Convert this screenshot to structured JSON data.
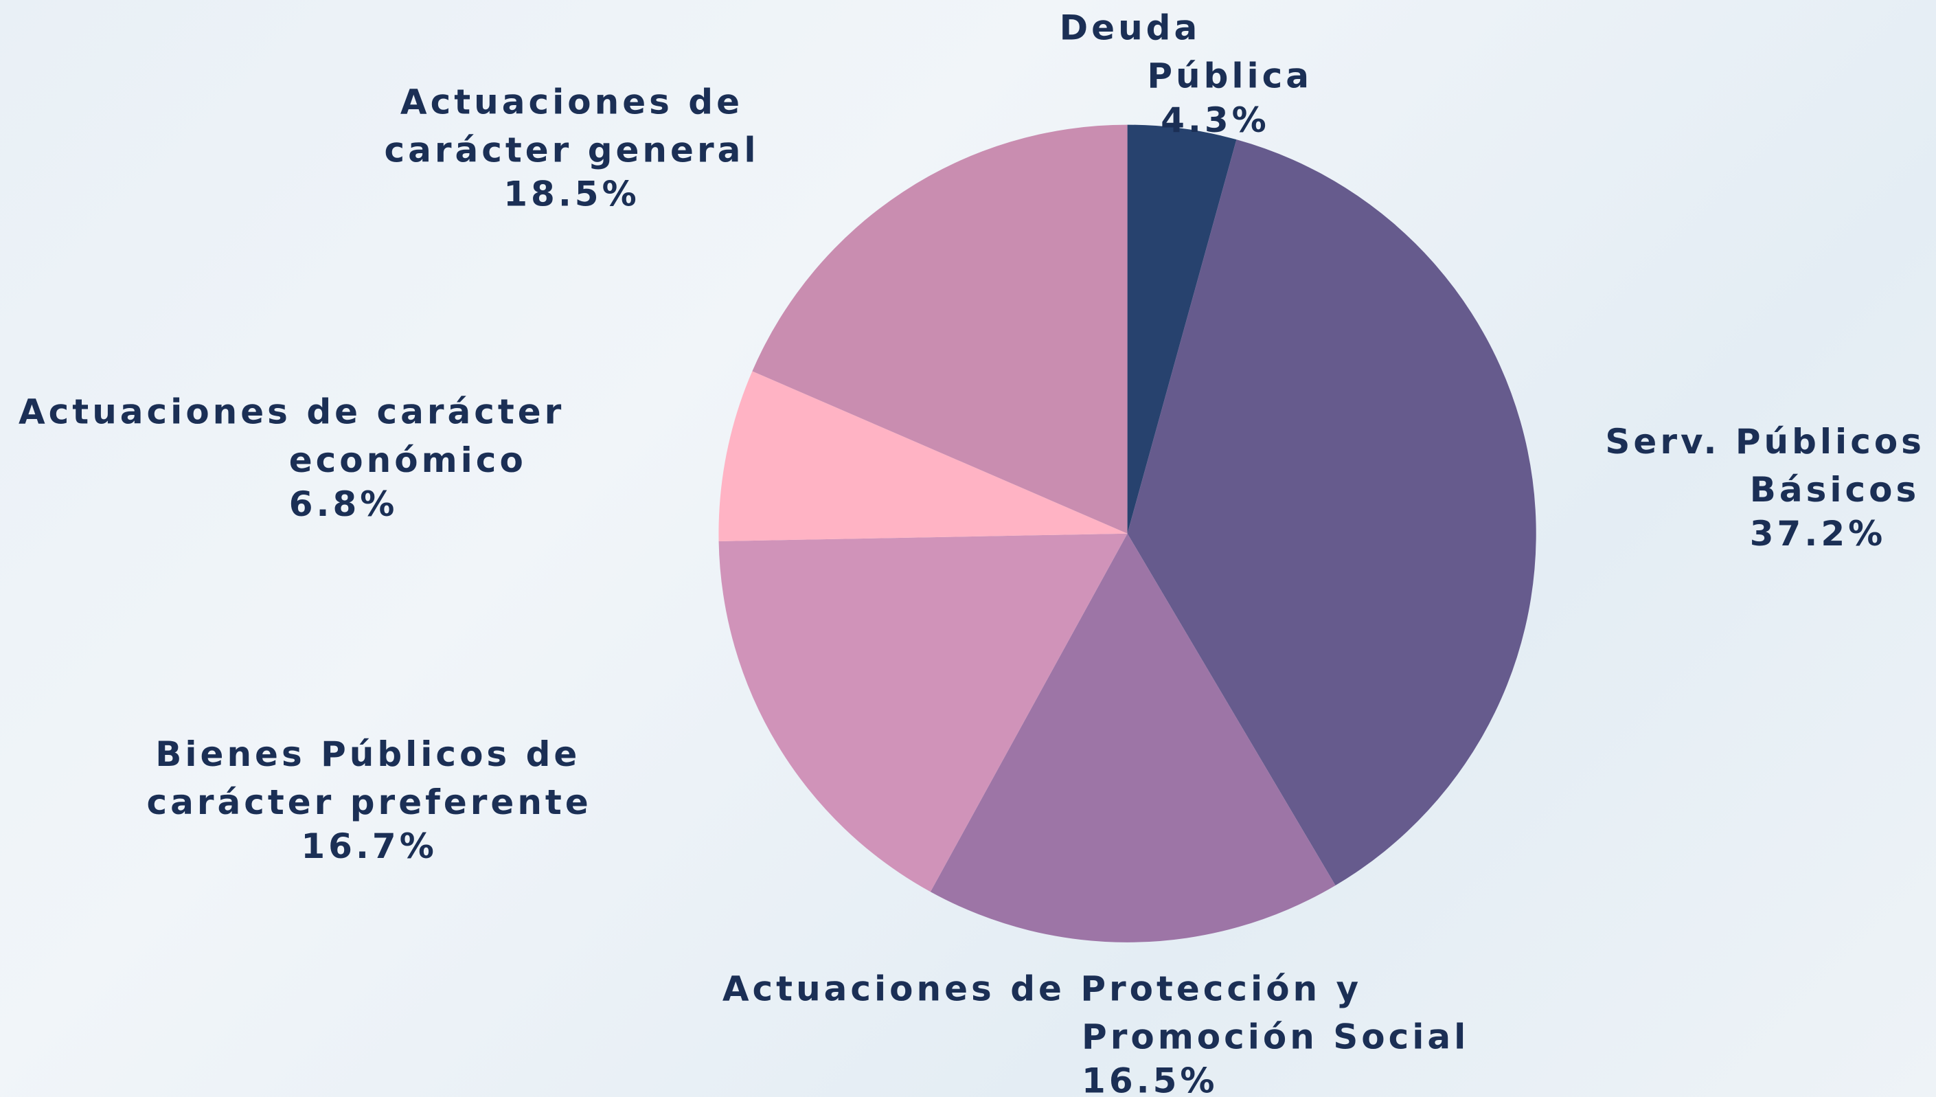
{
  "chart_data": {
    "type": "pie",
    "categories": [
      [
        "Deuda",
        "Pública"
      ],
      [
        "Serv. Públicos",
        "Básicos"
      ],
      [
        "Actuaciones de Protección y",
        "Promoción Social"
      ],
      [
        "Bienes Públicos de",
        "carácter preferente"
      ],
      [
        "Actuaciones de carácter",
        "económico"
      ],
      [
        "Actuaciones de",
        "carácter general"
      ]
    ],
    "values": [
      4.3,
      37.2,
      16.5,
      16.7,
      6.8,
      18.5
    ],
    "value_labels": [
      "4.3%",
      "37.2%",
      "16.5%",
      "16.7%",
      "6.8%",
      "18.5%"
    ],
    "colors": [
      "#27426e",
      "#665b8d",
      "#9d75a6",
      "#d093b9",
      "#ffb3c4",
      "#c98db0"
    ]
  }
}
